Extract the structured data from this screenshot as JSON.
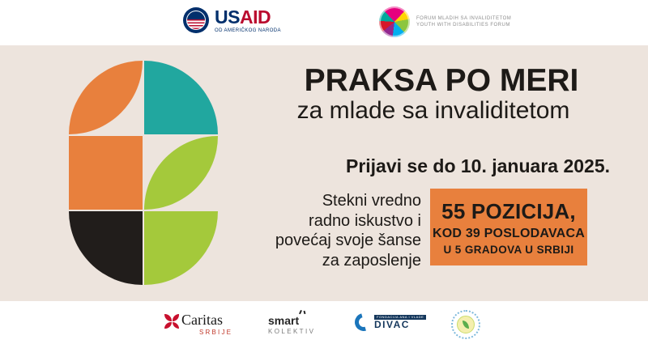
{
  "colors": {
    "background_beige": "#EDE4DD",
    "accent_orange": "#E8803D",
    "accent_teal": "#21A79F",
    "accent_lime": "#A4C93B",
    "accent_black": "#211D1B",
    "text_dark": "#1D1A17",
    "usaid_navy": "#002F6C",
    "usaid_red": "#BA0C2F",
    "caritas_red": "#C8102E",
    "divac_blue": "#1B75BB"
  },
  "header": {
    "usaid": {
      "brand_us": "US",
      "brand_aid": "AID",
      "tagline": "OD AMERIČKOG NARODA"
    },
    "fmi": {
      "line1": "FORUM MLADIH SA INVALIDITETOM",
      "line2": "YOUTH WITH DISABILITIES FORUM"
    }
  },
  "main": {
    "title": "PRAKSA PO MERI",
    "subtitle": "za mlade sa invaliditetom",
    "deadline": "Prijavi se do 10. januara 2025.",
    "pitch": [
      "Stekni vredno",
      "radno iskustvo i",
      "povećaj svoje šanse",
      "za zaposlenje"
    ],
    "badge": [
      "55 POZICIJA,",
      "KOD 39 POSLODAVACA",
      "U 5 GRADOVA U SRBIJI"
    ]
  },
  "footer": {
    "caritas": {
      "name": "Caritas",
      "sub": "SRBIJE"
    },
    "smart": {
      "name": "smart",
      "sub": "KOLEKTIV"
    },
    "divac": {
      "name": "DIVAC",
      "sub": "FONDACIJA ANA I VLADE"
    }
  }
}
